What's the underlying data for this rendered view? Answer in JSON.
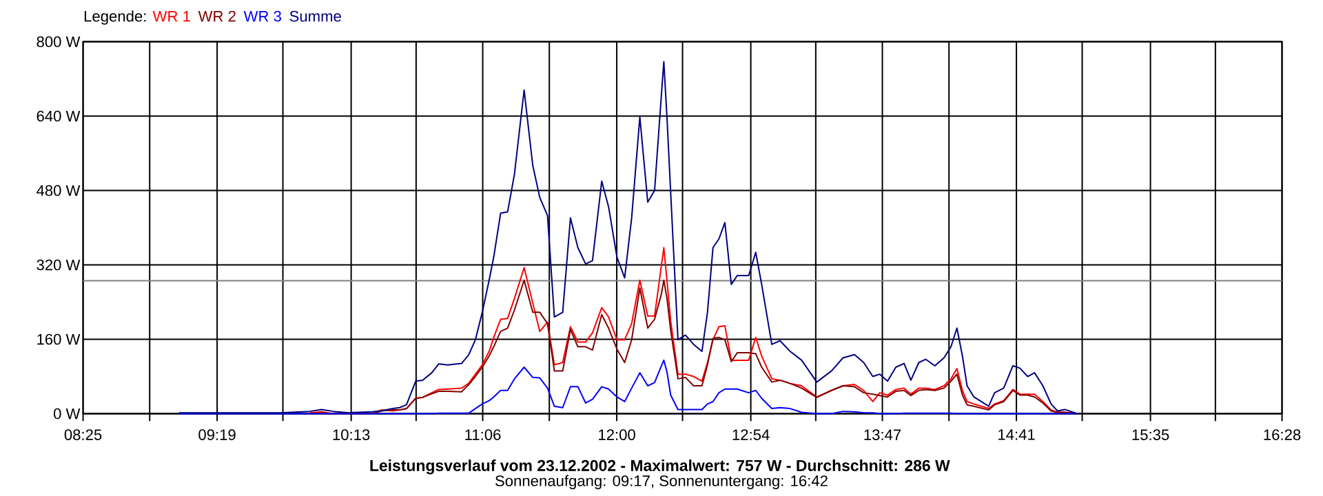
{
  "chart_data": {
    "type": "line",
    "title": "Leistungsverlauf vom 23.12.2002 - Maximalwert: 757 W - Durchschnitt: 286 W",
    "subtitle": "Sonnenaufgang: 09:17, Sonnenuntergang: 16:42",
    "legend_title": "Legende:",
    "legend": "top left",
    "grid": true,
    "xlim": [
      8.4167,
      16.4667
    ],
    "ylim": [
      0,
      800
    ],
    "xticks": [
      {
        "value": 8.4167,
        "label": "08:25"
      },
      {
        "value": 8.8639,
        "label": null
      },
      {
        "value": 9.3167,
        "label": "09:19"
      },
      {
        "value": 9.7583,
        "label": null
      },
      {
        "value": 10.2167,
        "label": "10:13"
      },
      {
        "value": 10.6528,
        "label": null
      },
      {
        "value": 11.1,
        "label": "11:06"
      },
      {
        "value": 11.5472,
        "label": null
      },
      {
        "value": 12.0,
        "label": "12:00"
      },
      {
        "value": 12.4417,
        "label": null
      },
      {
        "value": 12.9,
        "label": "12:54"
      },
      {
        "value": 13.3361,
        "label": null
      },
      {
        "value": 13.7833,
        "label": "13:47"
      },
      {
        "value": 14.2306,
        "label": null
      },
      {
        "value": 14.6833,
        "label": "14:41"
      },
      {
        "value": 15.125,
        "label": null
      },
      {
        "value": 15.5833,
        "label": "15:35"
      },
      {
        "value": 16.0194,
        "label": null
      },
      {
        "value": 16.4667,
        "label": "16:28"
      }
    ],
    "yticks": [
      {
        "value": 0,
        "label": "0 W"
      },
      {
        "value": 160,
        "label": "160 W"
      },
      {
        "value": 320,
        "label": "320 W"
      },
      {
        "value": 480,
        "label": "480 W"
      },
      {
        "value": 640,
        "label": "640 W"
      },
      {
        "value": 800,
        "label": "800 W"
      }
    ],
    "ref_lines": [
      {
        "axis": "y",
        "value": 286,
        "color": "#808080"
      }
    ],
    "x": [
      9.061,
      9.586,
      9.74,
      9.94,
      10.018,
      10.095,
      10.203,
      10.357,
      10.419,
      10.496,
      10.542,
      10.588,
      10.65,
      10.696,
      10.758,
      10.804,
      10.866,
      10.958,
      11.005,
      11.051,
      11.097,
      11.143,
      11.174,
      11.22,
      11.267,
      11.313,
      11.378,
      11.436,
      11.483,
      11.535,
      11.581,
      11.637,
      11.689,
      11.739,
      11.791,
      11.837,
      11.899,
      11.945,
      12.001,
      12.053,
      12.1,
      12.155,
      12.208,
      12.254,
      12.3,
      12.316,
      12.337,
      12.362,
      12.411,
      12.461,
      12.516,
      12.572,
      12.609,
      12.646,
      12.686,
      12.726,
      12.769,
      12.809,
      12.886,
      12.933,
      12.973,
      13.041,
      13.096,
      13.164,
      13.241,
      13.343,
      13.442,
      13.519,
      13.596,
      13.658,
      13.719,
      13.766,
      13.818,
      13.874,
      13.929,
      13.975,
      14.028,
      14.074,
      14.136,
      14.197,
      14.244,
      14.284,
      14.321,
      14.352,
      14.398,
      14.497,
      14.537,
      14.598,
      14.66,
      14.706,
      14.759,
      14.805,
      14.861,
      14.916,
      14.959,
      15.009,
      15.092
    ],
    "series": [
      {
        "name": "WR 1",
        "color": "#ff0000",
        "values": [
          null,
          null,
          null,
          2,
          4,
          0,
          0,
          0,
          8,
          6,
          8,
          11,
          33,
          35,
          45,
          52,
          53,
          55,
          65,
          85,
          105,
          134,
          164,
          203,
          205,
          248,
          314,
          238,
          177,
          197,
          105,
          110,
          187,
          154,
          154,
          174,
          228,
          208,
          159,
          159,
          194,
          287,
          210,
          210,
          319,
          357,
          287,
          199,
          85,
          85,
          80,
          70,
          110,
          159,
          187,
          189,
          115,
          115,
          115,
          164,
          124,
          75,
          72,
          65,
          60,
          36,
          50,
          60,
          63,
          50,
          26,
          45,
          40,
          52,
          55,
          42,
          55,
          55,
          52,
          60,
          75,
          97,
          50,
          26,
          21,
          11,
          21,
          28,
          52,
          42,
          42,
          42,
          26,
          8,
          3,
          3,
          0
        ]
      },
      {
        "name": "WR 2",
        "color": "#800000",
        "values": [
          null,
          null,
          null,
          0,
          2,
          0,
          0,
          0,
          6,
          8,
          8,
          11,
          33,
          35,
          43,
          48,
          48,
          47,
          62,
          80,
          100,
          124,
          144,
          177,
          184,
          223,
          287,
          218,
          218,
          194,
          92,
          92,
          181,
          144,
          144,
          137,
          213,
          184,
          139,
          110,
          159,
          270,
          184,
          203,
          258,
          287,
          248,
          179,
          75,
          78,
          60,
          60,
          105,
          162,
          164,
          159,
          112,
          131,
          131,
          129,
          100,
          68,
          72,
          65,
          55,
          35,
          50,
          60,
          58,
          45,
          42,
          39,
          36,
          48,
          50,
          39,
          50,
          52,
          50,
          55,
          70,
          85,
          40,
          19,
          16,
          8,
          19,
          26,
          50,
          40,
          40,
          36,
          23,
          6,
          3,
          3,
          0
        ]
      },
      {
        "name": "WR 3",
        "color": "#0000ff",
        "values": [
          0,
          0,
          0,
          0,
          0,
          0,
          0,
          0,
          0,
          0,
          0,
          0,
          0,
          0,
          0,
          1,
          1,
          1,
          1,
          11,
          21,
          28,
          36,
          50,
          50,
          75,
          100,
          78,
          77,
          55,
          16,
          13,
          58,
          58,
          23,
          31,
          58,
          53,
          36,
          26,
          55,
          88,
          60,
          67,
          103,
          115,
          90,
          40,
          9,
          9,
          9,
          9,
          21,
          26,
          45,
          53,
          53,
          53,
          45,
          50,
          33,
          11,
          13,
          11,
          3,
          0,
          0,
          5,
          4,
          2,
          2,
          0,
          0,
          0,
          1,
          1,
          1,
          1,
          1,
          1,
          1,
          0,
          0,
          0,
          0,
          0,
          0,
          0,
          0,
          0,
          0,
          0,
          0,
          0,
          0,
          0,
          0
        ]
      },
      {
        "name": "Summe",
        "color": "#000080",
        "values": [
          2,
          2,
          2,
          5,
          9,
          5,
          2,
          4,
          6,
          11,
          13,
          19,
          70,
          72,
          88,
          107,
          105,
          108,
          126,
          159,
          218,
          287,
          337,
          431,
          434,
          515,
          696,
          534,
          465,
          426,
          208,
          218,
          421,
          357,
          322,
          329,
          500,
          445,
          337,
          292,
          421,
          638,
          455,
          480,
          687,
          757,
          638,
          475,
          159,
          169,
          149,
          134,
          218,
          357,
          376,
          411,
          278,
          297,
          297,
          347,
          278,
          149,
          157,
          134,
          115,
          68,
          92,
          120,
          127,
          110,
          80,
          85,
          70,
          100,
          108,
          72,
          110,
          117,
          103,
          120,
          144,
          184,
          124,
          60,
          36,
          16,
          45,
          55,
          103,
          98,
          80,
          88,
          60,
          21,
          6,
          9,
          0
        ]
      }
    ]
  }
}
